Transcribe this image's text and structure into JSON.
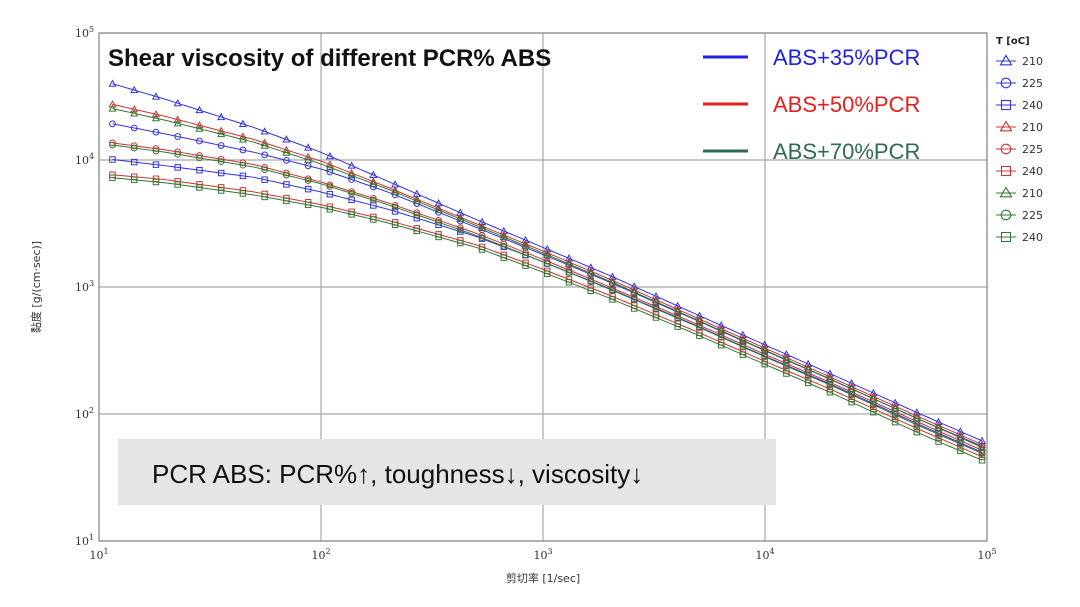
{
  "chart_data": {
    "type": "line",
    "title": "Shear viscosity of different PCR% ABS",
    "xlabel": "剪切率 [1/sec]",
    "ylabel": "黏度 [g/(cm·sec)]",
    "xscale": "log",
    "yscale": "log",
    "xlim": [
      10,
      100000
    ],
    "ylim": [
      10,
      100000
    ],
    "x_ticks": [
      {
        "value": 10,
        "base": "10",
        "exp": "1"
      },
      {
        "value": 100,
        "base": "10",
        "exp": "2"
      },
      {
        "value": 1000,
        "base": "10",
        "exp": "3"
      },
      {
        "value": 10000,
        "base": "10",
        "exp": "4"
      },
      {
        "value": 100000,
        "base": "10",
        "exp": "5"
      }
    ],
    "y_ticks": [
      {
        "value": 10,
        "base": "10",
        "exp": "1"
      },
      {
        "value": 100,
        "base": "10",
        "exp": "2"
      },
      {
        "value": 1000,
        "base": "10",
        "exp": "3"
      },
      {
        "value": 10000,
        "base": "10",
        "exp": "4"
      },
      {
        "value": 100000,
        "base": "10",
        "exp": "5"
      }
    ],
    "grid": true,
    "x": [
      12,
      20,
      50,
      100,
      200,
      500,
      1000,
      2000,
      5000,
      10000,
      20000,
      50000,
      90000
    ],
    "series": [
      {
        "name": "ABS+35%PCR 210",
        "group": "ABS+35%PCR",
        "temp": "210",
        "color": "#3333dd",
        "marker": "triangle",
        "values": [
          39000,
          30000,
          18000,
          11500,
          6800,
          3400,
          2050,
          1230,
          600,
          350,
          205,
          100,
          64
        ]
      },
      {
        "name": "ABS+35%PCR 225",
        "group": "ABS+35%PCR",
        "temp": "225",
        "color": "#3333dd",
        "marker": "circle",
        "values": [
          19000,
          16000,
          11500,
          8500,
          5600,
          2950,
          1800,
          1090,
          540,
          315,
          185,
          90,
          58
        ]
      },
      {
        "name": "ABS+35%PCR 240",
        "group": "ABS+35%PCR",
        "temp": "240",
        "color": "#3333dd",
        "marker": "square",
        "values": [
          10000,
          9000,
          7300,
          5600,
          4100,
          2500,
          1580,
          970,
          490,
          285,
          170,
          82,
          52
        ]
      },
      {
        "name": "ABS+50%PCR 210",
        "group": "ABS+50%PCR",
        "temp": "210",
        "color": "#cc3333",
        "marker": "triangle",
        "values": [
          27000,
          22000,
          14500,
          9800,
          6100,
          3150,
          1920,
          1150,
          565,
          330,
          193,
          94,
          60
        ]
      },
      {
        "name": "ABS+50%PCR 225",
        "group": "ABS+50%PCR",
        "temp": "225",
        "color": "#cc3333",
        "marker": "circle",
        "values": [
          13500,
          12000,
          9200,
          6700,
          4600,
          2650,
          1650,
          1000,
          505,
          295,
          175,
          85,
          54
        ]
      },
      {
        "name": "ABS+50%PCR 240",
        "group": "ABS+50%PCR",
        "temp": "240",
        "color": "#cc3333",
        "marker": "square",
        "values": [
          7600,
          7000,
          5600,
          4450,
          3350,
          2150,
          1380,
          860,
          440,
          260,
          155,
          75,
          48
        ]
      },
      {
        "name": "ABS+70%PCR 210",
        "group": "ABS+70%PCR",
        "temp": "210",
        "color": "#337733",
        "marker": "triangle",
        "values": [
          25000,
          20500,
          13800,
          9300,
          5900,
          3050,
          1850,
          1110,
          545,
          318,
          186,
          90,
          57
        ]
      },
      {
        "name": "ABS+70%PCR 225",
        "group": "ABS+70%PCR",
        "temp": "225",
        "color": "#337733",
        "marker": "circle",
        "values": [
          13000,
          11500,
          8800,
          6500,
          4450,
          2550,
          1580,
          960,
          485,
          282,
          167,
          80,
          51
        ]
      },
      {
        "name": "ABS+70%PCR 240",
        "group": "ABS+70%PCR",
        "temp": "240",
        "color": "#337733",
        "marker": "square",
        "values": [
          7200,
          6600,
          5300,
          4250,
          3200,
          2050,
          1310,
          815,
          418,
          246,
          146,
          70,
          45
        ]
      }
    ],
    "group_legend": [
      {
        "label": "ABS+35%PCR",
        "color": "#1f1fe6"
      },
      {
        "label": "ABS+50%PCR",
        "color": "#e61f1f"
      },
      {
        "label": "ABS+70%PCR",
        "color": "#2e6b4f"
      }
    ],
    "temp_legend_title": "T [oC]",
    "annotation": "PCR ABS: PCR%↑, toughness↓, viscosity↓"
  }
}
